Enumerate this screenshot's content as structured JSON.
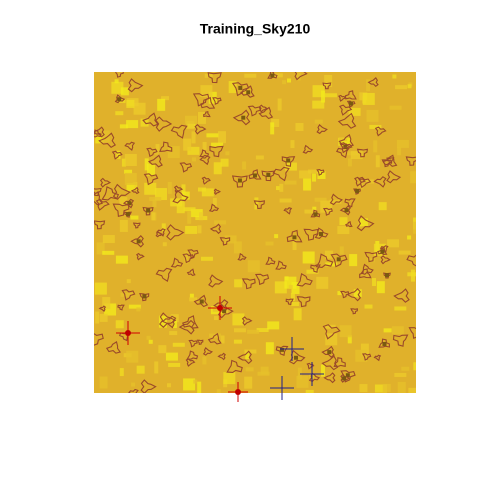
{
  "chart_data": {
    "type": "image",
    "title": "Training_Sky210"
  }
}
